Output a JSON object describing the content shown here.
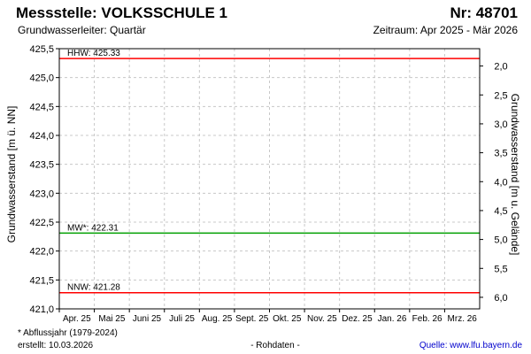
{
  "header": {
    "title": "Messstelle: VOLKSSCHULE 1",
    "number": "Nr: 48701",
    "subtitle": "Grundwasserleiter: Quartär",
    "period": "Zeitraum: Apr 2025 - Mär 2026"
  },
  "footer": {
    "note": "* Abflussjahr (1979-2024)",
    "created": "erstellt:  10.03.2026",
    "raw": "- Rohdaten -",
    "source": "Quelle: www.lfu.bayern.de"
  },
  "colors": {
    "limit_line": "#ff0000",
    "mean_line": "#00a000",
    "grid": "#c8c8c8",
    "frame": "#000000",
    "text": "#000000"
  },
  "chart_data": {
    "type": "line",
    "ylabel": "Grundwasserstand [m ü. NN]",
    "ylabel_right": "Grundwasserstand [m u. Gelände]",
    "ylim": [
      421.0,
      425.5
    ],
    "yticks": [
      {
        "value": 421.0,
        "label": "421,0"
      },
      {
        "value": 421.5,
        "label": "421,5"
      },
      {
        "value": 422.0,
        "label": "422,0"
      },
      {
        "value": 422.5,
        "label": "422,5"
      },
      {
        "value": 423.0,
        "label": "423,0"
      },
      {
        "value": 423.5,
        "label": "423,5"
      },
      {
        "value": 424.0,
        "label": "424,0"
      },
      {
        "value": 424.5,
        "label": "424,5"
      },
      {
        "value": 425.0,
        "label": "425,0"
      },
      {
        "value": 425.5,
        "label": "425,5"
      }
    ],
    "ylim_right": [
      6.2,
      1.7
    ],
    "yticks_right": [
      {
        "value": 2.0,
        "label": "2,0"
      },
      {
        "value": 2.5,
        "label": "2,5"
      },
      {
        "value": 3.0,
        "label": "3,0"
      },
      {
        "value": 3.5,
        "label": "3,5"
      },
      {
        "value": 4.0,
        "label": "4,0"
      },
      {
        "value": 4.5,
        "label": "4,5"
      },
      {
        "value": 5.0,
        "label": "5,0"
      },
      {
        "value": 5.5,
        "label": "5,5"
      },
      {
        "value": 6.0,
        "label": "6,0"
      }
    ],
    "categories": [
      "Apr. 25",
      "Mai 25",
      "Juni 25",
      "Juli 25",
      "Aug. 25",
      "Sept. 25",
      "Okt. 25",
      "Nov. 25",
      "Dez. 25",
      "Jan. 26",
      "Feb. 26",
      "Mrz. 26"
    ],
    "grid": true,
    "reference_lines": [
      {
        "label": "HHW: 425.33",
        "value": 425.33,
        "color": "#ff0000"
      },
      {
        "label": "MW*: 422.31",
        "value": 422.31,
        "color": "#00a000"
      },
      {
        "label": "NNW: 421.28",
        "value": 421.28,
        "color": "#ff0000"
      }
    ]
  }
}
